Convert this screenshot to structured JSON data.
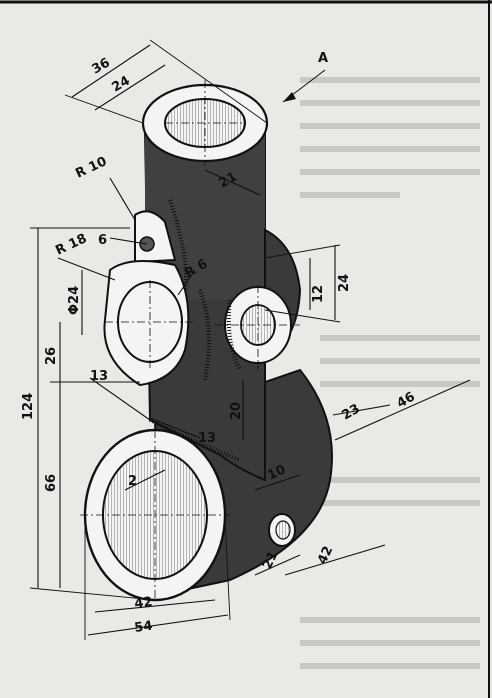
{
  "view_label": "A",
  "colors": {
    "paper": "#e9e9e6",
    "shade": "#3a3a3a",
    "face": "#f4f4f2",
    "ink": "#111111"
  },
  "dimensions": {
    "top_outer_diameter": "36",
    "top_inner_diameter": "24",
    "top_boss_radius": "21",
    "lug_radius": "R 10",
    "lug_hole": "6",
    "side_radius": "R 18",
    "hole_diameter": "Φ24",
    "inner_radius": "R 6",
    "boss_height": "12",
    "boss_outer": "24",
    "height_26": "26",
    "total_height": "124",
    "height_66": "66",
    "web_13_a": "13",
    "web_13_b": "13",
    "web_20": "20",
    "offset_23": "23",
    "offset_46": "46",
    "small_2": "2",
    "hole_10": "10",
    "depth_21": "21",
    "depth_42": "42",
    "bore_42": "42",
    "base_width_54": "54"
  }
}
